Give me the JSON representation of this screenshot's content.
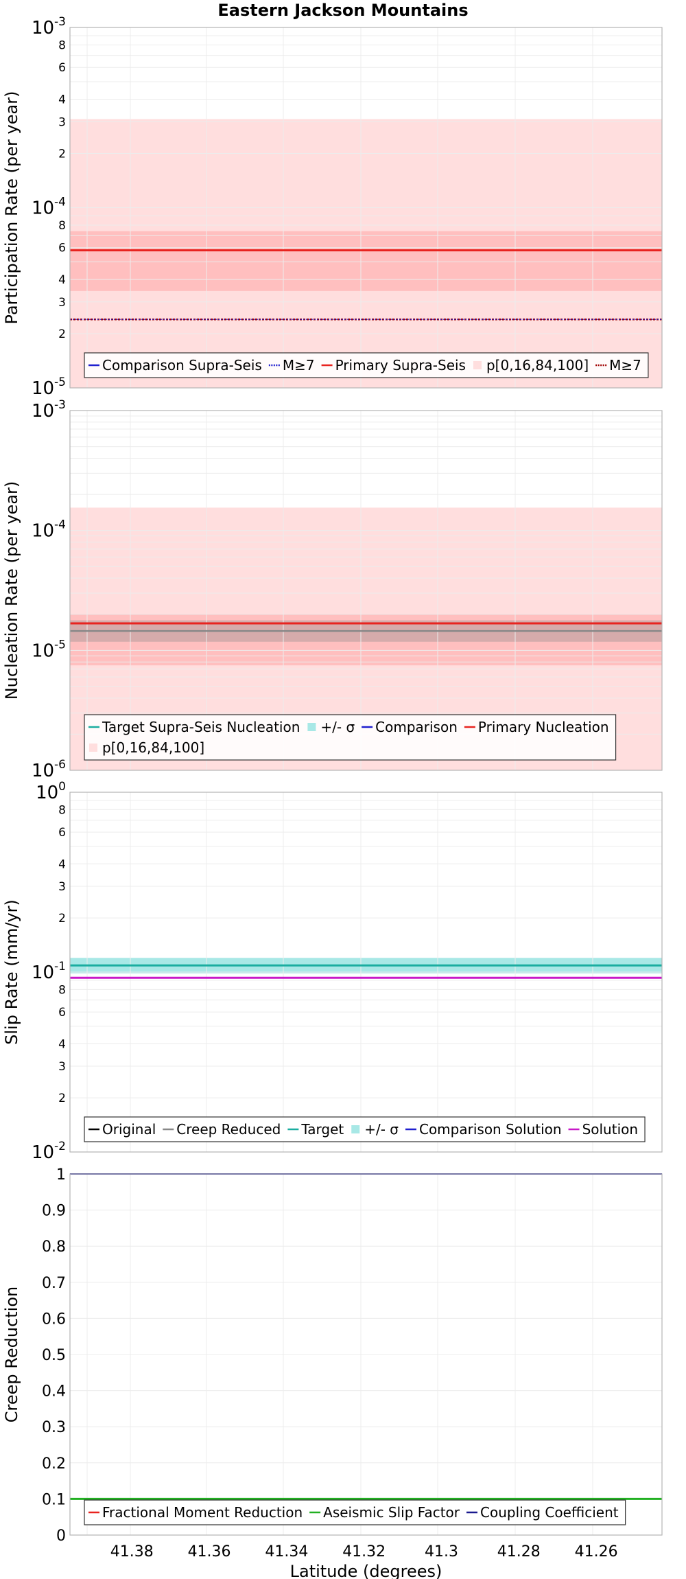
{
  "title": "Eastern Jackson Mountains",
  "colors": {
    "red": "#e8231f",
    "darkred": "#a00000",
    "blue": "#1f1fcf",
    "navy": "#1a1a8f",
    "cyan": "#1aada0",
    "cyan_band": "#a8e8e6",
    "magenta": "#c819c8",
    "green": "#22b022",
    "grey": "#888888",
    "band_outer": "#ffdede",
    "band_inner": "#ffbfbf",
    "frame": "#b4b4b4",
    "grid": "#ececec"
  },
  "chart_data": [
    {
      "type": "line",
      "name": "participation",
      "ylabel": "Participation Rate (per year)",
      "yscale": "log",
      "ylim": [
        1e-05,
        0.001
      ],
      "xlim": [
        41.396,
        41.243
      ],
      "major_ticks": [
        {
          "value": 0.001,
          "base": "10",
          "exp": "-3"
        },
        {
          "value": 0.0001,
          "base": "10",
          "exp": "-4"
        },
        {
          "value": 1e-05,
          "base": "10",
          "exp": "-5"
        }
      ],
      "minor_ticks": [
        {
          "value": 0.0008,
          "label": "8"
        },
        {
          "value": 0.0006,
          "label": "6"
        },
        {
          "value": 0.0004,
          "label": "4"
        },
        {
          "value": 0.0003,
          "label": "3"
        },
        {
          "value": 0.0002,
          "label": "2"
        },
        {
          "value": 8e-05,
          "label": "8"
        },
        {
          "value": 6e-05,
          "label": "6"
        },
        {
          "value": 4e-05,
          "label": "4"
        },
        {
          "value": 3e-05,
          "label": "3"
        },
        {
          "value": 2e-05,
          "label": "2"
        }
      ],
      "bands": [
        {
          "name": "p[0,100]",
          "low": 1e-05,
          "high": 0.00031,
          "color": "band_outer"
        },
        {
          "name": "p[16,84]",
          "low": 3.45e-05,
          "high": 7.4e-05,
          "color": "band_inner"
        }
      ],
      "series": [
        {
          "name": "Primary Supra-Seis",
          "value": 5.8e-05,
          "color": "red",
          "width": 3,
          "dash": ""
        },
        {
          "name": "M≥7 (primary)",
          "value": 2.4e-05,
          "color": "darkred",
          "width": 2.5,
          "dash": "3,2"
        },
        {
          "name": "M≥7 (comparison)",
          "value": 2.4e-05,
          "color": "blue",
          "width": 1.2,
          "dash": "2,2"
        }
      ],
      "legend": {
        "position": "bottom",
        "rows": [
          [
            {
              "label": "Comparison Supra-Seis",
              "sym": "line",
              "color": "blue"
            },
            {
              "label": "M≥7",
              "sym": "dots",
              "color": "blue"
            },
            {
              "label": "Primary Supra-Seis",
              "sym": "line",
              "color": "red"
            },
            {
              "label": "p[0,16,84,100]",
              "sym": "band",
              "color": "band_outer"
            },
            {
              "label": "M≥7",
              "sym": "dots",
              "color": "darkred"
            }
          ]
        ]
      }
    },
    {
      "type": "line",
      "name": "nucleation",
      "ylabel": "Nucleation Rate (per year)",
      "yscale": "log",
      "ylim": [
        1e-06,
        0.001
      ],
      "xlim": [
        41.396,
        41.243
      ],
      "major_ticks": [
        {
          "value": 0.001,
          "base": "10",
          "exp": "-3"
        },
        {
          "value": 0.0001,
          "base": "10",
          "exp": "-4"
        },
        {
          "value": 1e-05,
          "base": "10",
          "exp": "-5"
        },
        {
          "value": 1e-06,
          "base": "10",
          "exp": "-6"
        }
      ],
      "minor_ticks": [],
      "bands": [
        {
          "name": "p[0,100]",
          "low": 1e-06,
          "high": 0.000155,
          "color": "band_outer"
        },
        {
          "name": "p[16,84]",
          "low": 7.5e-06,
          "high": 2e-05,
          "color": "band_inner"
        },
        {
          "name": "+/- σ",
          "low": 1.18e-05,
          "high": 1.78e-05,
          "color": "grey",
          "opacity": 0.35
        }
      ],
      "series": [
        {
          "name": "Target Supra-Seis Nucleation",
          "value": 1.45e-05,
          "color": "grey",
          "width": 2.5,
          "dash": ""
        },
        {
          "name": "Primary Nucleation",
          "value": 1.68e-05,
          "color": "red",
          "width": 3,
          "dash": ""
        }
      ],
      "legend": {
        "position": "bottom",
        "rows": [
          [
            {
              "label": "Target Supra-Seis Nucleation",
              "sym": "line",
              "color": "cyan"
            },
            {
              "label": "+/- σ",
              "sym": "band",
              "color": "cyan_band"
            },
            {
              "label": "Comparison",
              "sym": "line",
              "color": "blue"
            },
            {
              "label": "Primary Nucleation",
              "sym": "line",
              "color": "red"
            }
          ],
          [
            {
              "label": "p[0,16,84,100]",
              "sym": "band",
              "color": "band_outer"
            }
          ]
        ]
      }
    },
    {
      "type": "line",
      "name": "slip",
      "ylabel": "Slip Rate (mm/yr)",
      "yscale": "log",
      "ylim": [
        0.01,
        1
      ],
      "xlim": [
        41.396,
        41.243
      ],
      "major_ticks": [
        {
          "value": 1,
          "base": "10",
          "exp": "0"
        },
        {
          "value": 0.1,
          "base": "10",
          "exp": "-1"
        },
        {
          "value": 0.01,
          "base": "10",
          "exp": "-2"
        }
      ],
      "minor_ticks": [
        {
          "value": 0.8,
          "label": "8"
        },
        {
          "value": 0.6,
          "label": "6"
        },
        {
          "value": 0.4,
          "label": "4"
        },
        {
          "value": 0.3,
          "label": "3"
        },
        {
          "value": 0.2,
          "label": "2"
        },
        {
          "value": 0.08,
          "label": "8"
        },
        {
          "value": 0.06,
          "label": "6"
        },
        {
          "value": 0.04,
          "label": "4"
        },
        {
          "value": 0.03,
          "label": "3"
        },
        {
          "value": 0.02,
          "label": "2"
        }
      ],
      "bands": [
        {
          "name": "+/- σ",
          "low": 0.0985,
          "high": 0.12,
          "color": "cyan_band"
        }
      ],
      "series": [
        {
          "name": "Target",
          "value": 0.109,
          "color": "cyan",
          "width": 3,
          "dash": ""
        },
        {
          "name": "Solution",
          "value": 0.093,
          "color": "magenta",
          "width": 3,
          "dash": ""
        }
      ],
      "legend": {
        "position": "bottom",
        "rows": [
          [
            {
              "label": "Original",
              "sym": "line",
              "color": "#000000"
            },
            {
              "label": "Creep Reduced",
              "sym": "line",
              "color": "grey"
            },
            {
              "label": "Target",
              "sym": "line",
              "color": "cyan"
            },
            {
              "label": "+/- σ",
              "sym": "band",
              "color": "cyan_band"
            },
            {
              "label": "Comparison Solution",
              "sym": "line",
              "color": "blue"
            },
            {
              "label": "Solution",
              "sym": "line",
              "color": "magenta"
            }
          ]
        ]
      }
    },
    {
      "type": "line",
      "name": "creep",
      "ylabel": "Creep Reduction",
      "xlabel": "Latitude (degrees)",
      "yscale": "linear",
      "ylim": [
        0,
        1
      ],
      "xlim": [
        41.396,
        41.243
      ],
      "y_ticks": [
        {
          "value": 1,
          "label": "1"
        },
        {
          "value": 0.9,
          "label": "0.9"
        },
        {
          "value": 0.8,
          "label": "0.8"
        },
        {
          "value": 0.7,
          "label": "0.7"
        },
        {
          "value": 0.6,
          "label": "0.6"
        },
        {
          "value": 0.5,
          "label": "0.5"
        },
        {
          "value": 0.4,
          "label": "0.4"
        },
        {
          "value": 0.3,
          "label": "0.3"
        },
        {
          "value": 0.2,
          "label": "0.2"
        },
        {
          "value": 0.1,
          "label": "0.1"
        },
        {
          "value": 0,
          "label": "0"
        }
      ],
      "x_ticks": [
        {
          "value": 41.38,
          "label": "41.38"
        },
        {
          "value": 41.36,
          "label": "41.36"
        },
        {
          "value": 41.34,
          "label": "41.34"
        },
        {
          "value": 41.32,
          "label": "41.32"
        },
        {
          "value": 41.3,
          "label": "41.3"
        },
        {
          "value": 41.28,
          "label": "41.28"
        },
        {
          "value": 41.26,
          "label": "41.26"
        }
      ],
      "bands": [],
      "series": [
        {
          "name": "Coupling Coefficient",
          "value": 1.0,
          "color": "navy",
          "width": 2,
          "dash": ""
        },
        {
          "name": "Aseismic Slip Factor",
          "value": 0.1,
          "color": "green",
          "width": 3,
          "dash": ""
        }
      ],
      "legend": {
        "position": "bottom",
        "rows": [
          [
            {
              "label": "Fractional Moment Reduction",
              "sym": "line",
              "color": "red"
            },
            {
              "label": "Aseismic Slip Factor",
              "sym": "line",
              "color": "green"
            },
            {
              "label": "Coupling Coefficient",
              "sym": "line",
              "color": "navy"
            }
          ]
        ]
      }
    }
  ]
}
